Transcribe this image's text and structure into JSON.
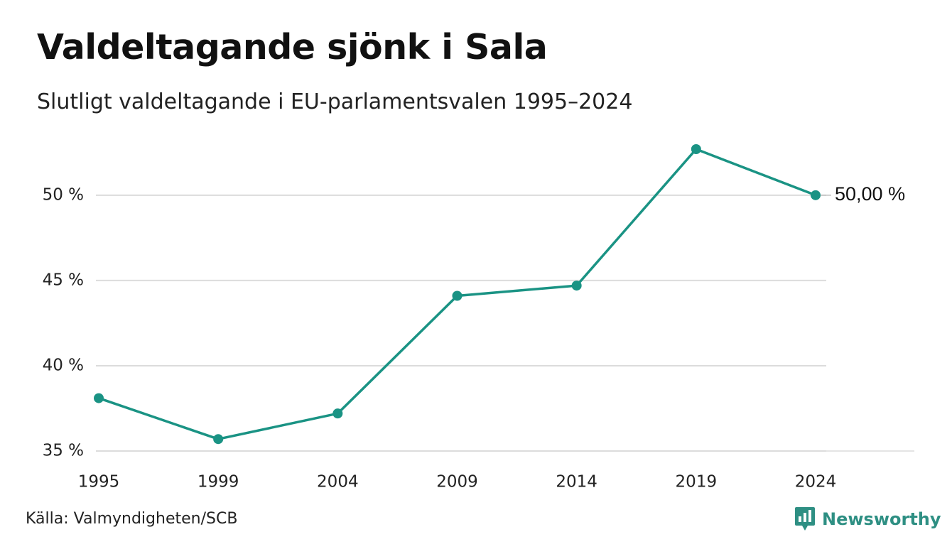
{
  "header": {
    "title": "Valdeltagande sjönk i Sala",
    "subtitle": "Slutligt valdeltagande i EU-parlamentsvalen 1995–2024"
  },
  "footer": {
    "source": "Källa: Valmyndigheten/SCB",
    "brand": "Newsworthy"
  },
  "colors": {
    "line": "#1a9384",
    "grid": "#dcdcdc",
    "brand": "#2e8f83",
    "text": "#222222"
  },
  "chart_data": {
    "type": "line",
    "categories": [
      "1995",
      "1999",
      "2004",
      "2009",
      "2014",
      "2019",
      "2024"
    ],
    "series": [
      {
        "values": [
          38.1,
          35.7,
          37.2,
          44.1,
          44.7,
          52.7,
          50.0
        ]
      }
    ],
    "ylim": [
      35,
      52.7
    ],
    "yticks": [
      35,
      40,
      45,
      50
    ],
    "ytick_labels": [
      "35 %",
      "40 %",
      "45 %",
      "50 %"
    ],
    "end_label": "50,00 %",
    "grid": true,
    "legend": "none"
  }
}
